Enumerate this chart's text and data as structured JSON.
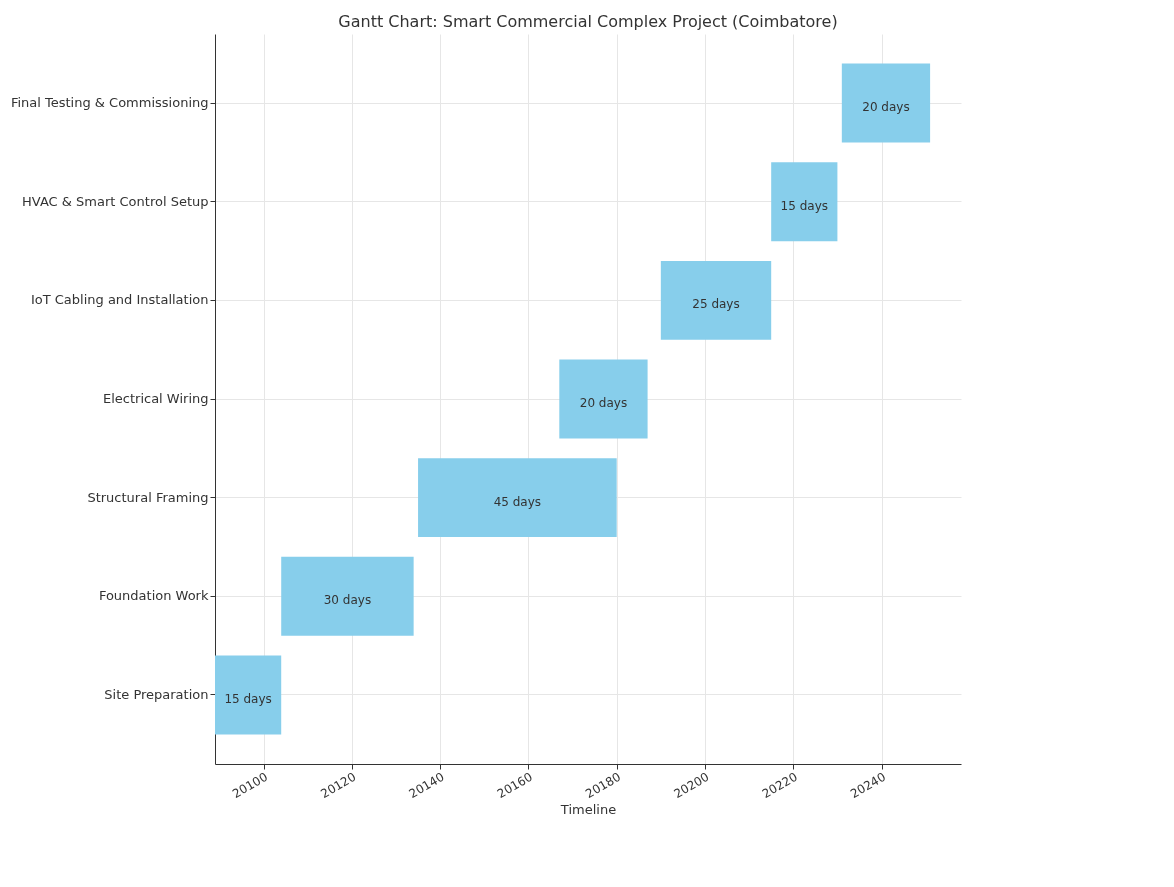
{
  "chart_data": {
    "type": "bar",
    "orientation": "horizontal",
    "title": "Gantt Chart: Smart Commercial Complex Project (Coimbatore)",
    "xlabel": "Timeline",
    "categories": [
      "Final Testing & Commissioning",
      "HVAC & Smart Control Setup",
      "IoT Cabling and Installation",
      "Electrical Wiring",
      "Structural Framing",
      "Foundation Work",
      "Site Preparation"
    ],
    "base": [
      20231,
      20215,
      20190,
      20167,
      20135,
      20104,
      20089
    ],
    "values": [
      20,
      15,
      25,
      20,
      45,
      30,
      15
    ],
    "value_labels": [
      "20 days",
      "15 days",
      "25 days",
      "20 days",
      "45 days",
      "30 days",
      "15 days"
    ],
    "color": "#87ceeb",
    "xlim": [
      20089,
      20258
    ],
    "xticks": [
      20100,
      20120,
      20140,
      20160,
      20180,
      20200,
      20220,
      20240
    ],
    "grid": true
  }
}
